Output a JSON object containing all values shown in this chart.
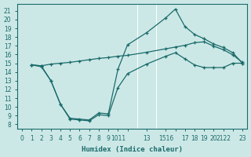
{
  "xlabel": "Humidex (Indice chaleur)",
  "background_color": "#cce8e6",
  "grid_color": "#ffffff",
  "line_color": "#1a6b6b",
  "xlim": [
    -0.5,
    23.5
  ],
  "ylim": [
    7.5,
    21.8
  ],
  "ytick_vals": [
    8,
    9,
    10,
    11,
    12,
    13,
    14,
    15,
    16,
    17,
    18,
    19,
    20,
    21
  ],
  "top_x": [
    1,
    2,
    3,
    4,
    5,
    6,
    7,
    8,
    9,
    10,
    11,
    13,
    15,
    16,
    17,
    18,
    19,
    20,
    21,
    22,
    23
  ],
  "top_y": [
    14.8,
    14.7,
    14.9,
    15.0,
    15.1,
    15.25,
    15.4,
    15.55,
    15.65,
    15.8,
    15.9,
    16.25,
    16.65,
    16.85,
    17.05,
    17.35,
    17.45,
    16.95,
    16.55,
    15.95,
    15.1
  ],
  "mid_x": [
    1,
    2,
    3,
    4,
    5,
    6,
    7,
    8,
    9,
    10,
    11,
    13,
    15,
    16,
    17,
    18,
    19,
    20,
    21,
    22,
    23
  ],
  "mid_y": [
    14.8,
    14.7,
    13.0,
    10.3,
    8.7,
    8.6,
    8.5,
    9.3,
    9.2,
    14.3,
    17.1,
    18.5,
    20.2,
    21.2,
    19.2,
    18.3,
    17.8,
    17.2,
    16.8,
    16.2,
    15.0
  ],
  "bot_x": [
    1,
    2,
    3,
    4,
    5,
    6,
    7,
    8,
    9,
    10,
    11,
    13,
    15,
    16,
    17,
    18,
    19,
    20,
    21,
    22,
    23
  ],
  "bot_y": [
    14.8,
    14.6,
    13.0,
    10.3,
    8.6,
    8.5,
    8.4,
    9.1,
    9.0,
    12.2,
    13.8,
    14.9,
    15.8,
    16.2,
    15.5,
    14.8,
    14.5,
    14.5,
    14.5,
    15.0,
    15.0
  ],
  "xtick_pos": [
    0,
    1,
    2,
    3,
    4,
    5,
    6,
    7,
    8,
    9,
    10,
    11,
    13,
    15,
    16,
    17,
    18,
    19,
    20,
    21,
    22,
    23
  ],
  "xtick_labels": [
    "0",
    "1",
    "2",
    "3",
    "4",
    "5",
    "6",
    "7",
    "8",
    "9",
    "1011",
    "",
    "13",
    "1516",
    "",
    "17",
    "18",
    "19",
    "20",
    "2122",
    "",
    "23"
  ]
}
